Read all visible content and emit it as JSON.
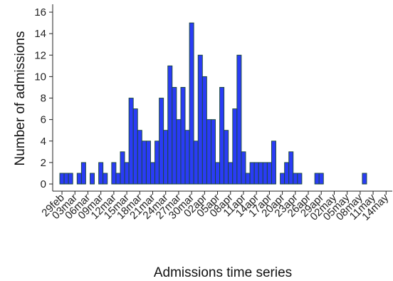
{
  "chart_data": {
    "type": "bar",
    "title": "",
    "xlabel": "Admissions time series",
    "ylabel": "Number of admissions",
    "ylim": [
      0,
      16
    ],
    "yticks": [
      0,
      2,
      4,
      6,
      8,
      10,
      12,
      14,
      16
    ],
    "xticks": [
      "29feb",
      "03mar",
      "06mar",
      "09mar",
      "12mar",
      "15mar",
      "18mar",
      "21mar",
      "24mar",
      "27mar",
      "30mar",
      "02apr",
      "05apr",
      "08apr",
      "11apr",
      "14apr",
      "17apr",
      "20apr",
      "23apr",
      "26apr",
      "29apr",
      "02may",
      "05may",
      "08may",
      "11may",
      "14may"
    ],
    "x_start": "2020-02-29",
    "values": [
      1,
      1,
      1,
      0,
      1,
      2,
      0,
      1,
      0,
      2,
      1,
      0,
      2,
      1,
      3,
      2,
      8,
      7,
      5,
      4,
      4,
      2,
      4,
      8,
      5,
      11,
      9,
      6,
      9,
      5,
      15,
      4,
      12,
      10,
      6,
      6,
      2,
      9,
      5,
      2,
      7,
      12,
      3,
      1,
      2,
      2,
      2,
      2,
      2,
      4,
      0,
      1,
      2,
      3,
      1,
      1,
      0,
      0,
      0,
      1,
      1,
      0,
      0,
      0,
      0,
      0,
      0,
      0,
      0,
      0,
      1
    ],
    "bar_color": "#2a3cf5",
    "bar_edge_color": "#1a4a32",
    "grid": false,
    "legend": "none"
  }
}
